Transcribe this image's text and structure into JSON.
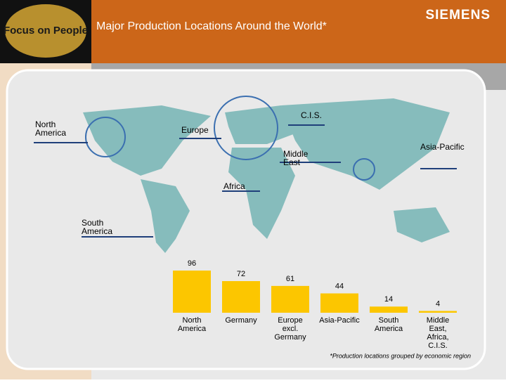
{
  "header": {
    "logo": "Focus on People",
    "title": "Major Production Locations Around the World*",
    "brand": "SIEMENS"
  },
  "map_labels": [
    "North America",
    "Europe",
    "C.I.S.",
    "Middle East",
    "Asia-Pacific",
    "Africa",
    "South America"
  ],
  "chart_data": {
    "type": "bar",
    "categories": [
      "North America",
      "Germany",
      "Europe excl. Germany",
      "Asia-Pacific",
      "South America",
      "Middle East, Africa, C.I.S."
    ],
    "values": [
      96,
      72,
      61,
      44,
      14,
      4
    ],
    "color": "#fcc600"
  },
  "footnote": "*Production locations grouped by economic region"
}
